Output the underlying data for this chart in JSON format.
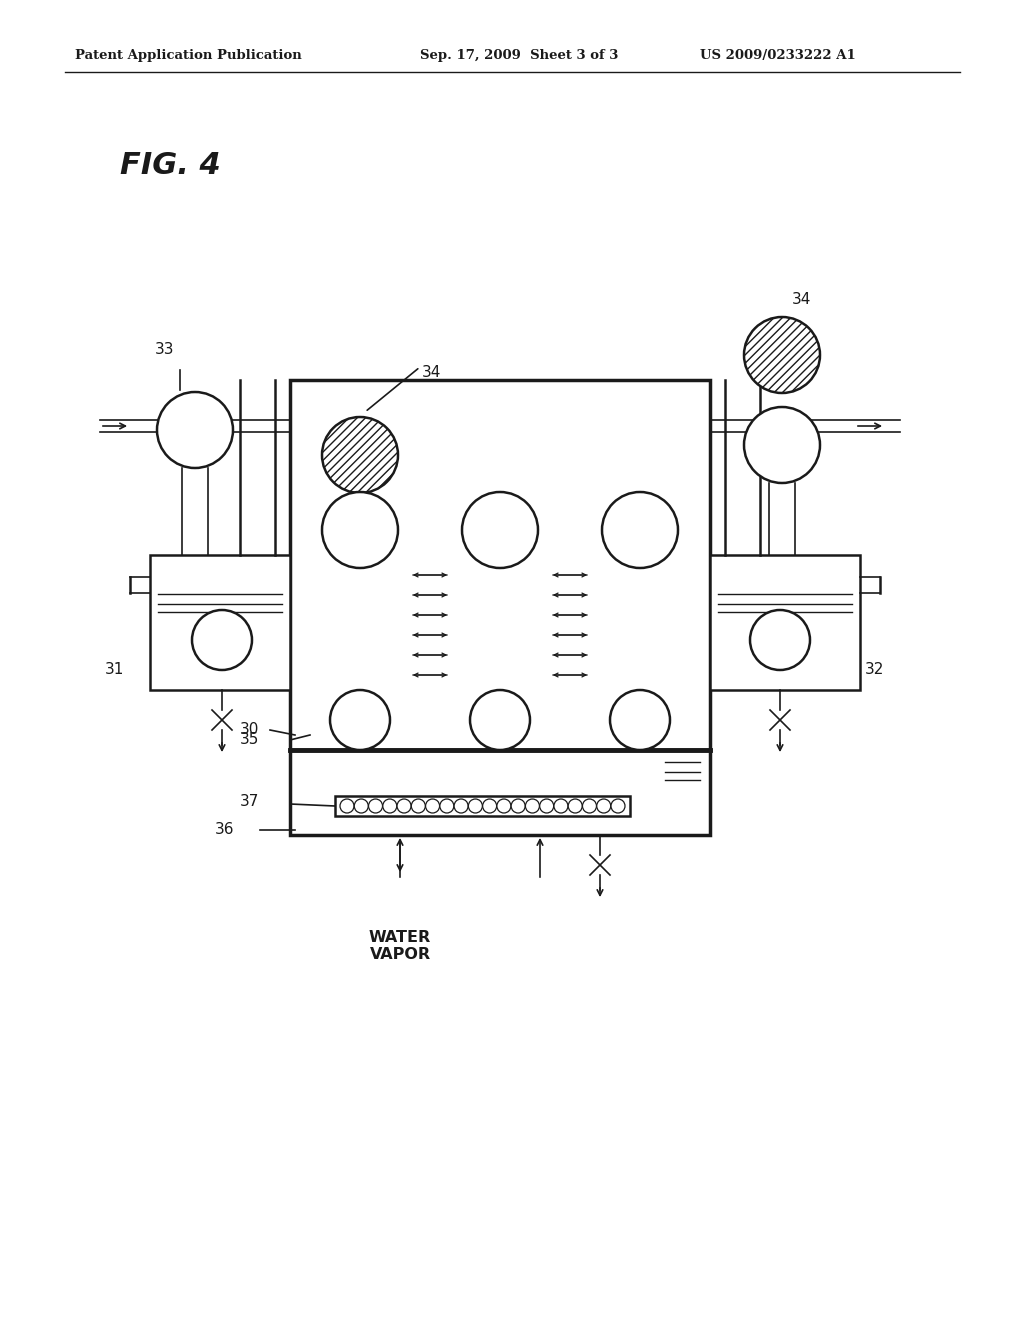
{
  "bg_color": "#ffffff",
  "line_color": "#1a1a1a",
  "header_text": "Patent Application Publication",
  "header_date": "Sep. 17, 2009  Sheet 3 of 3",
  "header_patent": "US 2009/0233222 A1",
  "fig_label": "FIG. 4",
  "water_vapor_label": "WATER\nVAPOR"
}
